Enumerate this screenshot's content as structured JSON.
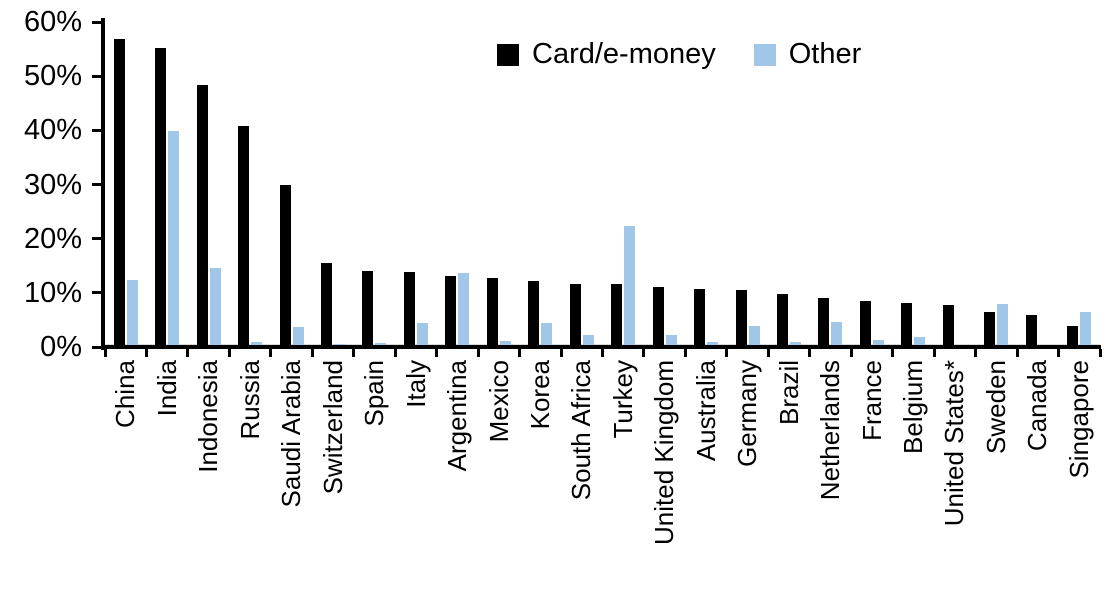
{
  "chart_data": {
    "type": "bar",
    "title": "",
    "categories": [
      "China",
      "India",
      "Indonesia",
      "Russia",
      "Saudi Arabia",
      "Switzerland",
      "Spain",
      "Italy",
      "Argentina",
      "Mexico",
      "Korea",
      "South Africa",
      "Turkey",
      "United Kingdom",
      "Australia",
      "Germany",
      "Brazil",
      "Netherlands",
      "France",
      "Belgium",
      "United States*",
      "Sweden",
      "Canada",
      "Singapore"
    ],
    "series": [
      {
        "name": "Card/e-money",
        "color": "#000000",
        "values": [
          56.8,
          55.2,
          48.4,
          40.8,
          30.0,
          15.6,
          14.0,
          13.8,
          13.2,
          12.8,
          12.1,
          11.7,
          11.6,
          11.1,
          10.8,
          10.5,
          9.8,
          9.1,
          8.5,
          8.1,
          7.8,
          6.5,
          5.9,
          3.8
        ]
      },
      {
        "name": "Other",
        "color": "#A0C6E8",
        "values": [
          12.3,
          39.8,
          14.6,
          0.9,
          3.7,
          0.6,
          0.8,
          4.5,
          13.7,
          1.1,
          4.4,
          2.3,
          22.4,
          2.3,
          0.9,
          3.9,
          1.0,
          4.7,
          1.3,
          1.9,
          0.2,
          7.9,
          0.0,
          6.5
        ]
      }
    ],
    "xlabel": "",
    "ylabel": "",
    "ylim": [
      0,
      60
    ],
    "ytick_step": 10,
    "ytick_labels": [
      "0%",
      "10%",
      "20%",
      "30%",
      "40%",
      "50%",
      "60%"
    ],
    "grid": false,
    "legend_position": "top-center"
  }
}
